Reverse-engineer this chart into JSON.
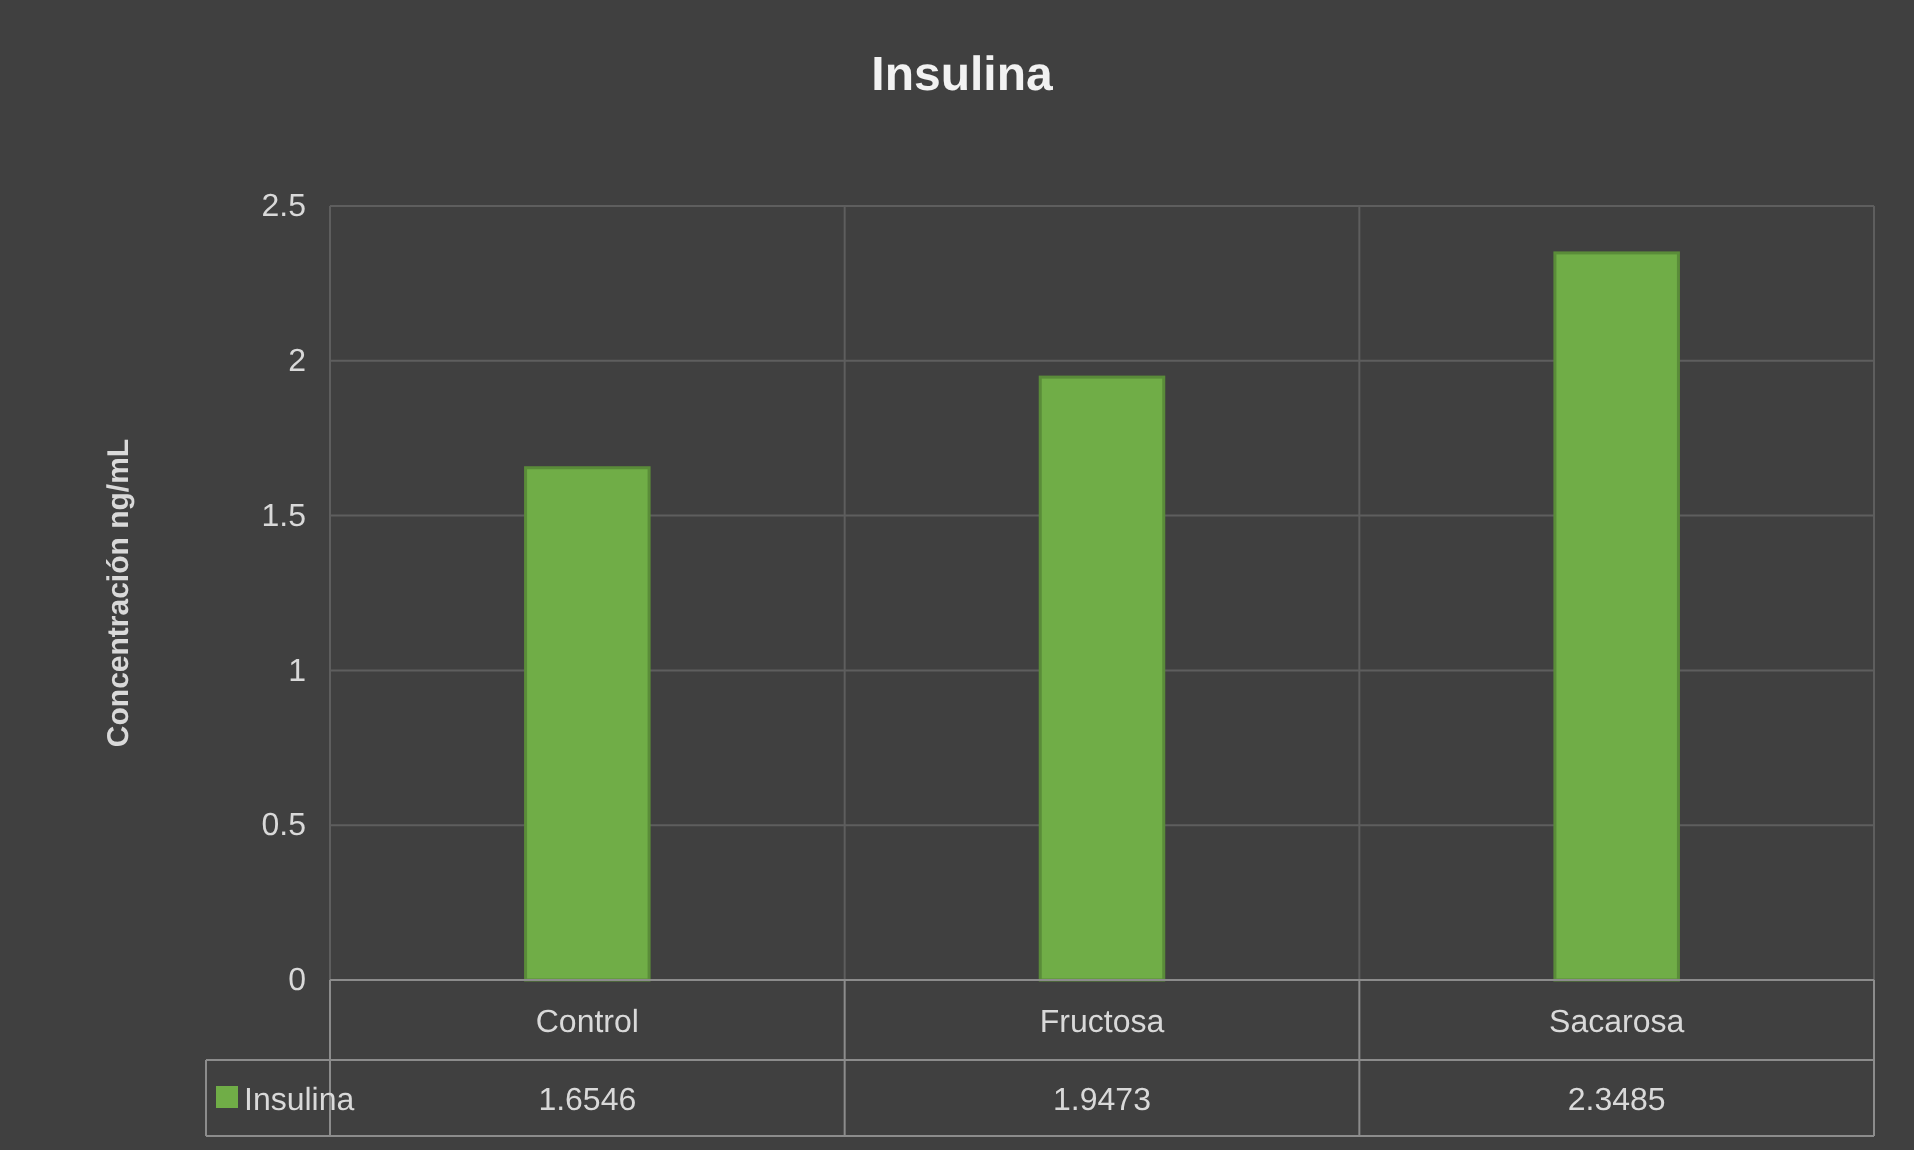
{
  "chart_data": {
    "type": "bar",
    "title": "Insulina",
    "ylabel": "Concentración  ng/mL",
    "categories": [
      "Control",
      "Fructosa",
      "Sacarosa"
    ],
    "series": [
      {
        "name": "Insulina",
        "color": "#70ad47",
        "values": [
          1.6546,
          1.9473,
          2.3485
        ]
      }
    ],
    "ylim": [
      0,
      2.5
    ],
    "yticks": [
      0,
      0.5,
      1,
      1.5,
      2,
      2.5
    ],
    "grid": true,
    "legend": "bottom",
    "data_labels": true
  }
}
